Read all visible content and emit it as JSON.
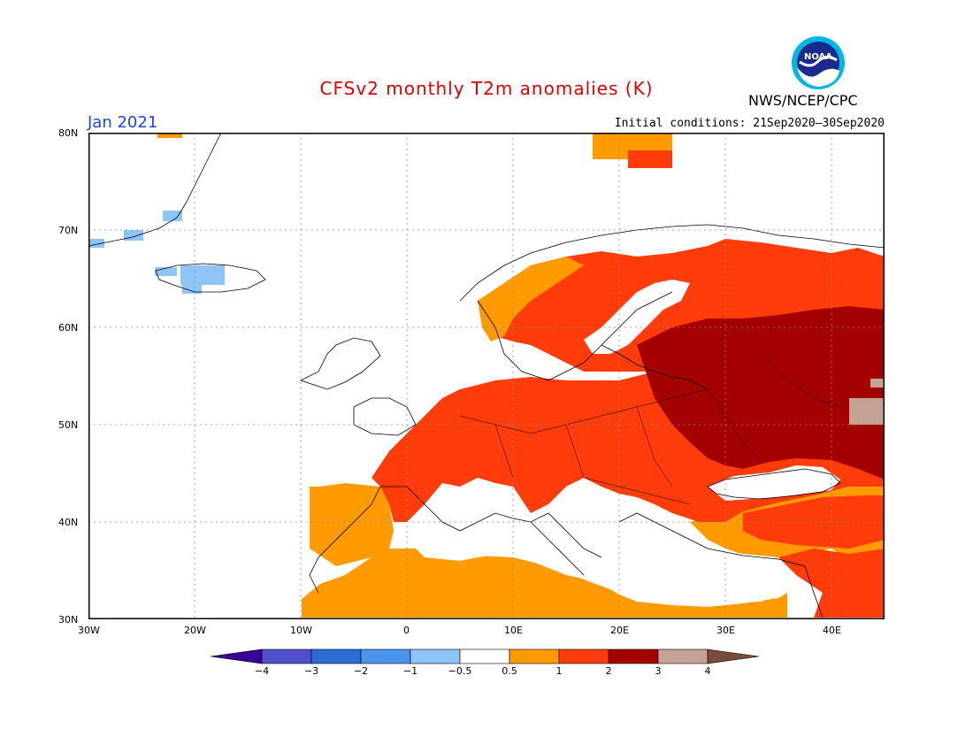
{
  "title": "CFSv2 monthly T2m anomalies (K)",
  "month": "Jan 2021",
  "initial_conditions": "Initial conditions: 21Sep2020–30Sep2020",
  "agency": "NWS/NCEP/CPC",
  "logo_text": "NOAA",
  "lat_labels": [
    "80N",
    "70N",
    "60N",
    "50N",
    "40N",
    "30N"
  ],
  "lon_labels": [
    "30W",
    "20W",
    "10W",
    "0",
    "10E",
    "20E",
    "30E",
    "40E"
  ],
  "colorbar": {
    "levels": [
      "−4",
      "−3",
      "−2",
      "−1",
      "−0.5",
      "0.5",
      "1",
      "2",
      "3",
      "4"
    ],
    "colors": {
      "below_-4": "#3a009a",
      "-4_-3": "#5050cc",
      "-3_-2": "#2a6bd6",
      "-2_-1": "#4a94ee",
      "-1_-0.5": "#8ec4f6",
      "-0.5_0.5": "#ffffff",
      "0.5_1": "#ff9a00",
      "1_2": "#ff3c0a",
      "2_3": "#a50000",
      "3_4": "#c4a396",
      "above_4": "#7a4a3a"
    }
  }
}
